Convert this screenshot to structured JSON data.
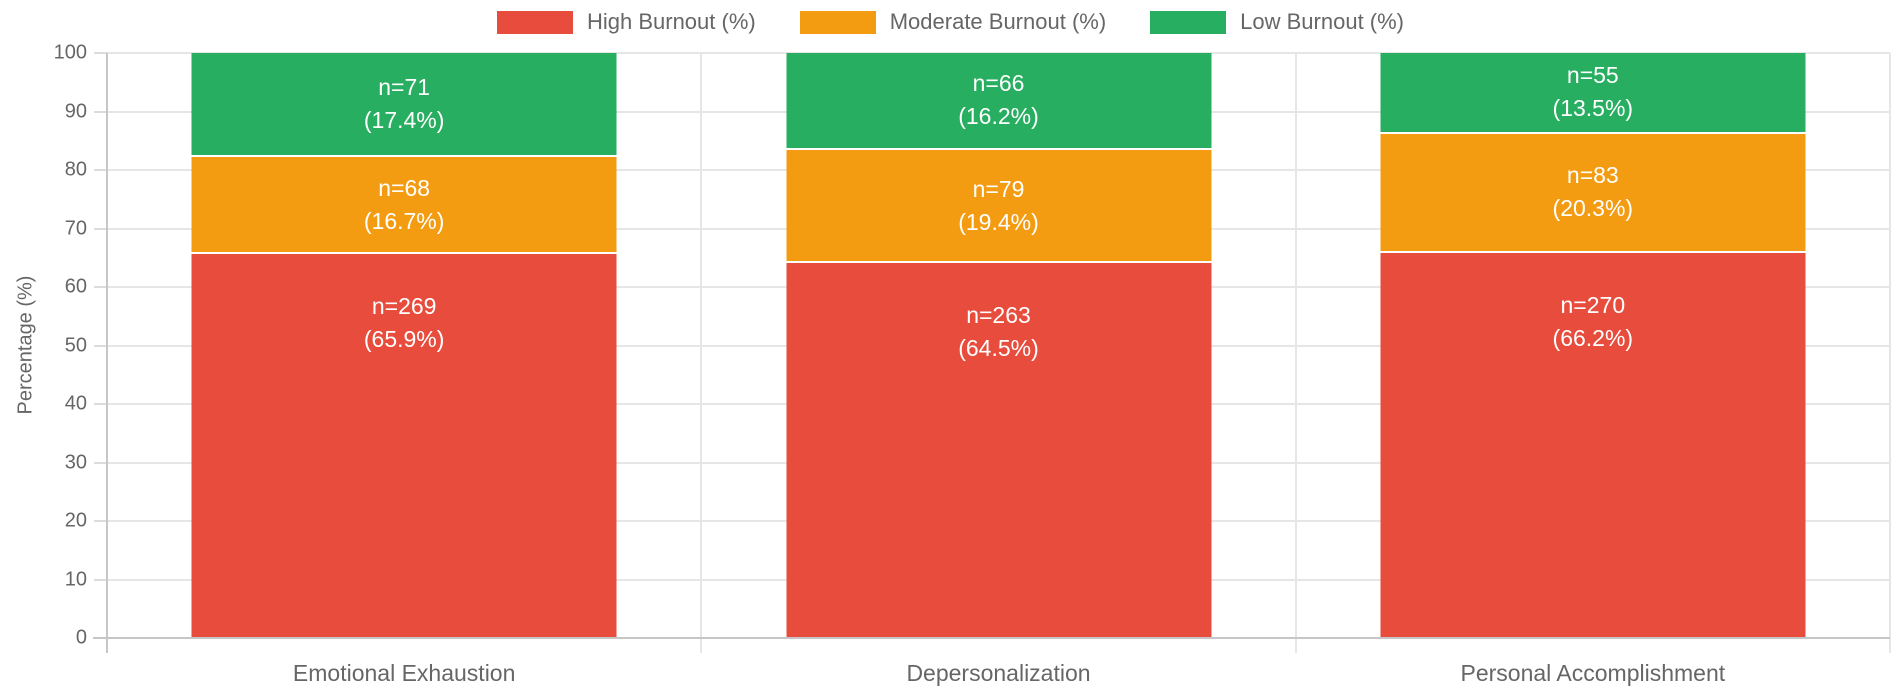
{
  "legend": {
    "items": [
      {
        "label": "High Burnout (%)",
        "color": "#e74c3c"
      },
      {
        "label": "Moderate Burnout (%)",
        "color": "#f39c12"
      },
      {
        "label": "Low Burnout (%)",
        "color": "#27ae60"
      }
    ]
  },
  "chart_data": {
    "type": "bar",
    "stacked": true,
    "title": "",
    "xlabel": "",
    "ylabel": "Percentage (%)",
    "ylim": [
      0,
      100
    ],
    "yticks": [
      0,
      10,
      20,
      30,
      40,
      50,
      60,
      70,
      80,
      90,
      100
    ],
    "grid": true,
    "legend_position": "top",
    "categories": [
      "Emotional Exhaustion",
      "Depersonalization",
      "Personal Accomplishment"
    ],
    "series": [
      {
        "name": "High Burnout (%)",
        "color": "#e74c3c",
        "counts": [
          269,
          263,
          270
        ],
        "values": [
          65.9,
          64.5,
          66.2
        ],
        "labels": [
          [
            "n=269",
            "(65.9%)"
          ],
          [
            "n=263",
            "(64.5%)"
          ],
          [
            "n=270",
            "(66.2%)"
          ]
        ]
      },
      {
        "name": "Moderate Burnout (%)",
        "color": "#f39c12",
        "counts": [
          68,
          79,
          83
        ],
        "values": [
          16.7,
          19.4,
          20.3
        ],
        "labels": [
          [
            "n=68",
            "(16.7%)"
          ],
          [
            "n=79",
            "(19.4%)"
          ],
          [
            "n=83",
            "(20.3%)"
          ]
        ]
      },
      {
        "name": "Low Burnout (%)",
        "color": "#27ae60",
        "counts": [
          71,
          66,
          55
        ],
        "values": [
          17.4,
          16.2,
          13.5
        ],
        "labels": [
          [
            "n=71",
            "(17.4%)"
          ],
          [
            "n=66",
            "(16.2%)"
          ],
          [
            "n=55",
            "(13.5%)"
          ]
        ]
      }
    ]
  }
}
